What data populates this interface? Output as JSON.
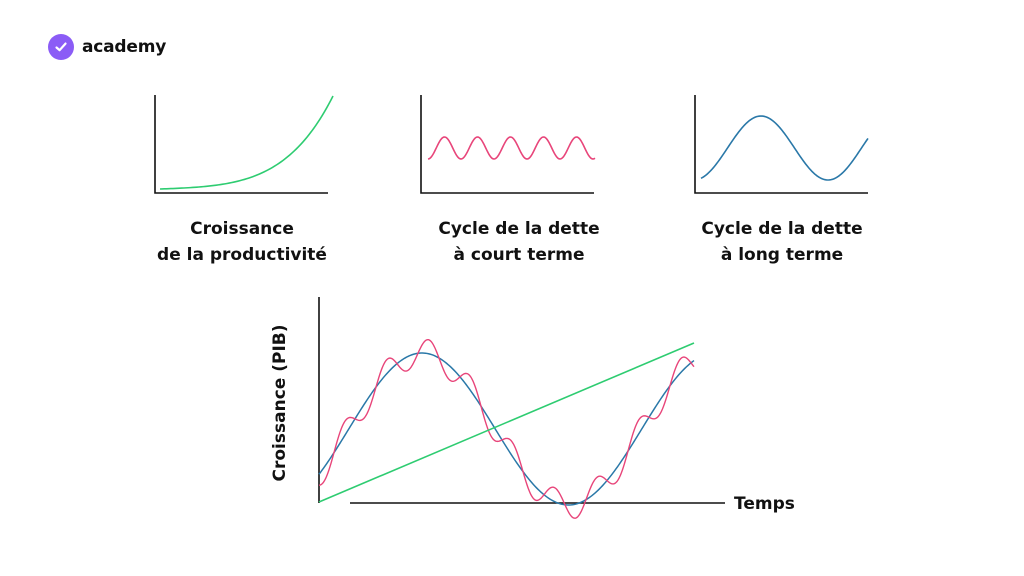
{
  "brand": {
    "name": "academy",
    "icon": "check-icon",
    "color": "#8b5cf6"
  },
  "colors": {
    "productivity": "#2ecc71",
    "short_cycle": "#e8457a",
    "long_cycle": "#2a78a8",
    "axes": "#111111"
  },
  "panels": [
    {
      "caption_line1": "Croissance",
      "caption_line2": "de la productivité",
      "curve": "exponential-growth"
    },
    {
      "caption_line1": "Cycle de la dette",
      "caption_line2": "à court terme",
      "curve": "short-period-wave"
    },
    {
      "caption_line1": "Cycle de la dette",
      "caption_line2": "à long terme",
      "curve": "long-period-wave"
    }
  ],
  "combined": {
    "y_axis_label": "Croissance (PIB)",
    "x_axis_label": "Temps"
  }
}
